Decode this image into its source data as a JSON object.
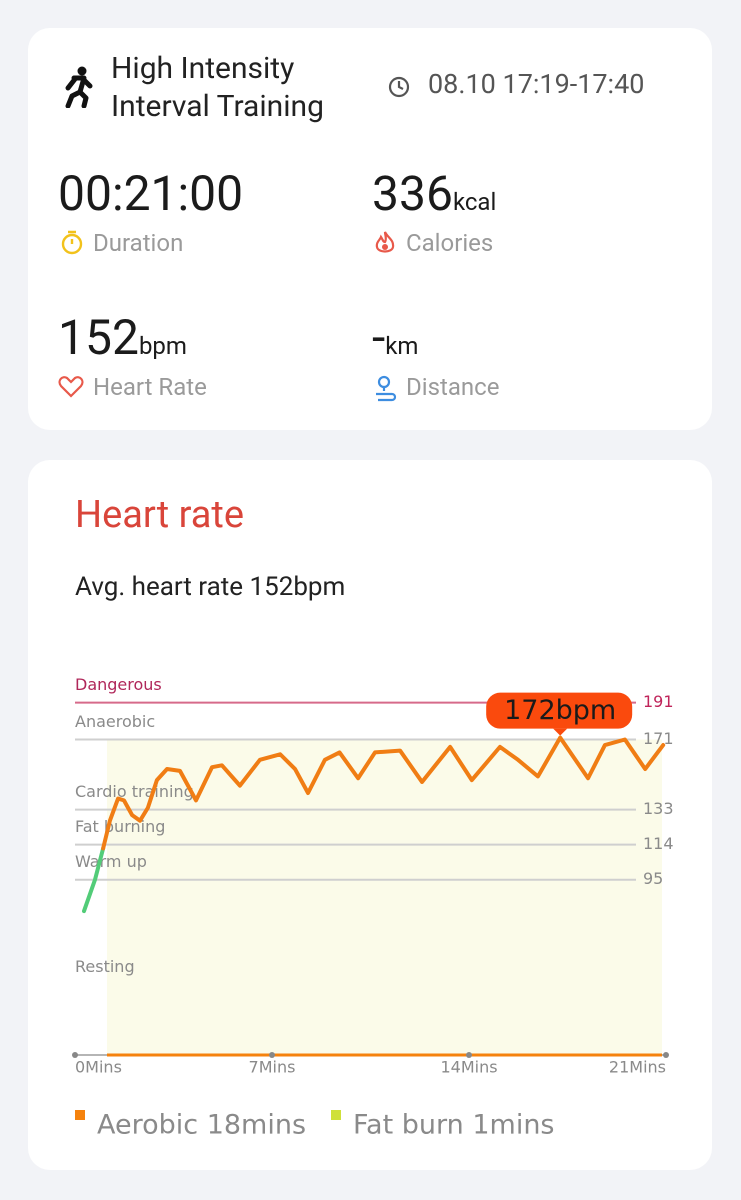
{
  "header": {
    "title": "High Intensity Interval Training",
    "time": "08.10 17:19-17:40"
  },
  "stats": [
    {
      "value": "00:21:00",
      "label": "Duration"
    },
    {
      "value": "336",
      "unit": "kcal",
      "label": "Calories"
    },
    {
      "value": "152",
      "unit": "bpm",
      "label": "Heart Rate"
    },
    {
      "value": "-",
      "unit": "km",
      "label": "Distance"
    }
  ],
  "chart_data": {
    "type": "line",
    "title": "Heart rate",
    "subtitle": "Avg. heart rate 152bpm",
    "zones": [
      "Resting",
      "Warm up",
      "Fat burning",
      "Cardio training",
      "Anaerobic",
      "Dangerous"
    ],
    "ylim": [
      0,
      200
    ],
    "yticks": [
      95,
      114,
      133,
      171,
      191
    ],
    "xlim": [
      0,
      21
    ],
    "xticks": [
      {
        "value": 0,
        "label": "0Mins"
      },
      {
        "value": 7,
        "label": "7Mins"
      },
      {
        "value": 14,
        "label": "14Mins"
      },
      {
        "value": 21,
        "label": "21Mins"
      }
    ],
    "x": [
      0.32,
      0.71,
      1.0,
      1.24,
      1.53,
      1.74,
      2.03,
      2.31,
      2.59,
      2.91,
      3.27,
      3.73,
      4.3,
      4.87,
      5.22,
      5.86,
      6.57,
      7.29,
      7.82,
      8.28,
      8.88,
      9.4,
      10.06,
      10.66,
      11.55,
      12.33,
      13.33,
      14.1,
      15.1,
      15.74,
      16.45,
      17.24,
      18.23,
      18.83,
      19.54,
      20.26,
      20.9
    ],
    "series": [
      {
        "color": "#52cc78",
        "values": [
          78,
          95,
          112,
          null,
          null,
          null,
          null,
          null,
          null,
          null,
          null,
          null,
          null,
          null,
          null,
          null,
          null,
          null,
          null,
          null,
          null,
          null,
          null,
          null,
          null,
          null,
          null,
          null,
          null,
          null,
          null,
          null,
          null,
          null,
          null,
          null,
          null
        ]
      },
      {
        "color": "#f07d14",
        "values": [
          null,
          null,
          112,
          127,
          139,
          138,
          130,
          127,
          134,
          149,
          155,
          154,
          138,
          156,
          157,
          146,
          160,
          163,
          155,
          142,
          160,
          164,
          150,
          164,
          165,
          148,
          167,
          149,
          167,
          160,
          151,
          172,
          150,
          168,
          171,
          155,
          168
        ]
      }
    ],
    "annotation": "172bpm",
    "legend": [
      {
        "name": "Aerobic 18mins",
        "color": "#f5820d"
      },
      {
        "name": "Fat burn 1mins",
        "color": "#cfe03a"
      }
    ]
  }
}
